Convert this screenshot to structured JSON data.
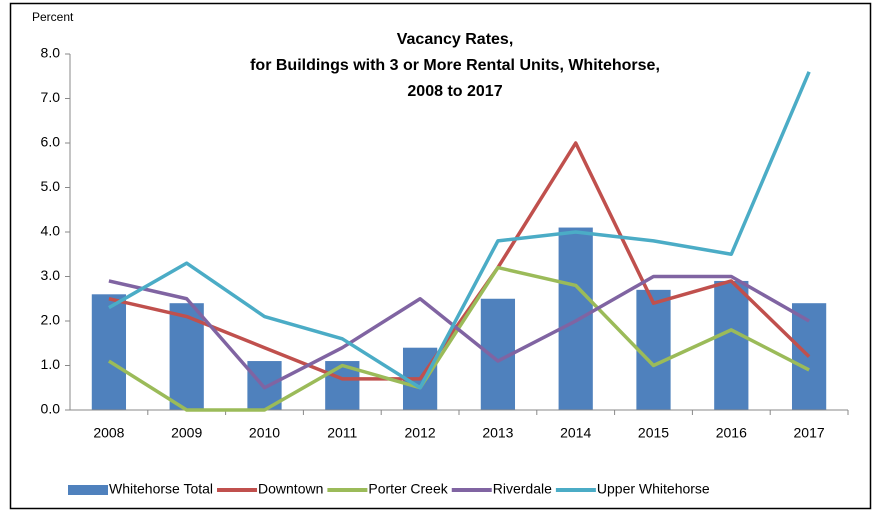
{
  "chart_data": {
    "type": "bar_line",
    "title": [
      "Vacancy Rates,",
      "for Buildings with 3 or More Rental Units, Whitehorse,",
      "2008 to 2017"
    ],
    "y_label": "Percent",
    "categories": [
      "2008",
      "2009",
      "2010",
      "2011",
      "2012",
      "2013",
      "2014",
      "2015",
      "2016",
      "2017"
    ],
    "series": [
      {
        "name": "Whitehorse Total",
        "type": "bar",
        "color": "#4f81bd",
        "values": [
          2.6,
          2.4,
          1.1,
          1.1,
          1.4,
          2.5,
          4.1,
          2.7,
          2.9,
          2.4
        ]
      },
      {
        "name": "Downtown",
        "type": "line",
        "color": "#c0504d",
        "values": [
          2.5,
          2.1,
          1.4,
          0.7,
          0.7,
          3.2,
          6.0,
          2.4,
          2.9,
          1.2
        ]
      },
      {
        "name": "Porter Creek",
        "type": "line",
        "color": "#9bbb59",
        "values": [
          1.1,
          0.0,
          0.0,
          1.0,
          0.5,
          3.2,
          2.8,
          1.0,
          1.8,
          0.9
        ]
      },
      {
        "name": "Riverdale",
        "type": "line",
        "color": "#8064a2",
        "values": [
          2.9,
          2.5,
          0.5,
          1.4,
          2.5,
          1.1,
          2.0,
          3.0,
          3.0,
          2.0
        ]
      },
      {
        "name": "Upper Whitehorse",
        "type": "line",
        "color": "#4bacc6",
        "values": [
          2.3,
          3.3,
          2.1,
          1.6,
          0.5,
          3.8,
          4.0,
          3.8,
          3.5,
          7.6
        ]
      }
    ],
    "ylim": [
      0,
      8
    ],
    "yticks": [
      {
        "value": 0,
        "label": "0.0"
      },
      {
        "value": 1,
        "label": "1.0"
      },
      {
        "value": 2,
        "label": "2.0"
      },
      {
        "value": 3,
        "label": "3.0"
      },
      {
        "value": 4,
        "label": "4.0"
      },
      {
        "value": 5,
        "label": "5.0"
      },
      {
        "value": 6,
        "label": "6.0"
      },
      {
        "value": 7,
        "label": "7.0"
      },
      {
        "value": 8,
        "label": "8.0"
      }
    ],
    "grid": false,
    "legend": "bottom"
  }
}
